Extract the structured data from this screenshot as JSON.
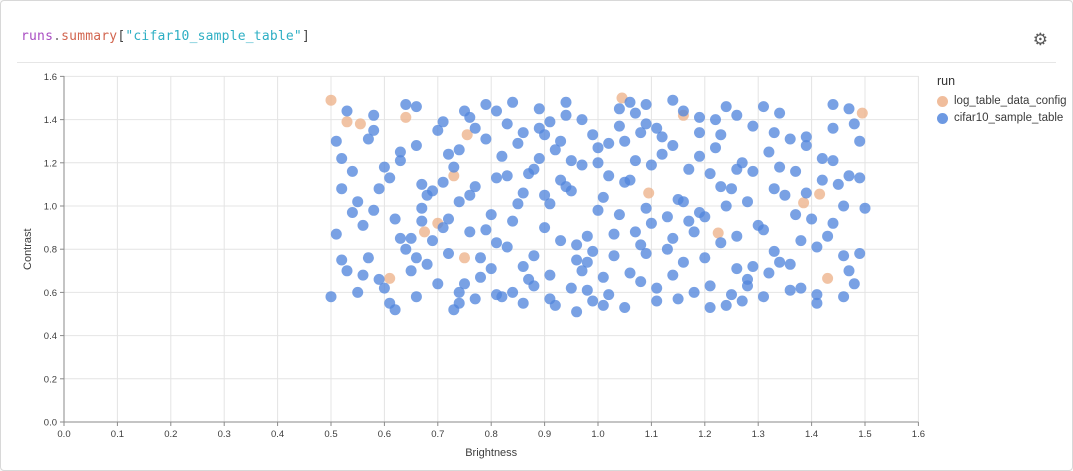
{
  "panel": {
    "title": {
      "segments": [
        {
          "text": "runs",
          "color": "#a94dc2"
        },
        {
          "text": ".",
          "color": "#777777"
        },
        {
          "text": "summary",
          "color": "#d2654f"
        },
        {
          "text": "[",
          "color": "#444444"
        },
        {
          "text": "\"cifar10_sample_table\"",
          "color": "#2eafc4"
        },
        {
          "text": "]",
          "color": "#444444"
        }
      ]
    },
    "gear_icon": "settings"
  },
  "chart_data": {
    "type": "scatter",
    "title": "",
    "xlabel": "Brightness",
    "ylabel": "Contrast",
    "xlim": [
      0,
      1.6
    ],
    "ylim": [
      0,
      1.6
    ],
    "x_tick_labels": [
      "0.0",
      "0.1",
      "0.2",
      "0.3",
      "0.4",
      "0.5",
      "0.6",
      "0.7",
      "0.8",
      "0.9",
      "1.0",
      "1.1",
      "1.2",
      "1.3",
      "1.4",
      "1.5",
      "1.6"
    ],
    "y_tick_labels": [
      "0.0",
      "0.2",
      "0.4",
      "0.6",
      "0.8",
      "1.0",
      "1.2",
      "1.4",
      "1.6"
    ],
    "grid": true,
    "marker_radius": 5.5,
    "marker_opacity": 0.78,
    "legend": {
      "title": "run",
      "position": "right",
      "entries": [
        {
          "label": "log_table_data_config",
          "color": "#edb28b"
        },
        {
          "label": "cifar10_sample_table",
          "color": "#5387dd"
        }
      ]
    },
    "series": [
      {
        "name": "log_table_data_config",
        "color": "#edb28b",
        "points": [
          [
            0.5,
            1.49
          ],
          [
            0.53,
            1.39
          ],
          [
            0.555,
            1.38
          ],
          [
            0.64,
            1.41
          ],
          [
            0.755,
            1.33
          ],
          [
            0.73,
            1.14
          ],
          [
            0.7,
            0.92
          ],
          [
            0.675,
            0.88
          ],
          [
            0.75,
            0.76
          ],
          [
            0.61,
            0.665
          ],
          [
            1.045,
            1.5
          ],
          [
            1.16,
            1.42
          ],
          [
            1.495,
            1.43
          ],
          [
            1.095,
            1.06
          ],
          [
            1.225,
            0.875
          ],
          [
            1.385,
            1.015
          ],
          [
            1.415,
            1.055
          ],
          [
            1.43,
            0.665
          ]
        ]
      },
      {
        "name": "cifar10_sample_table",
        "color": "#5387dd",
        "points": [
          [
            0.5,
            0.58
          ],
          [
            0.52,
            1.22
          ],
          [
            0.54,
            0.97
          ],
          [
            0.55,
            1.02
          ],
          [
            0.57,
            0.76
          ],
          [
            0.58,
            1.35
          ],
          [
            0.6,
            0.62
          ],
          [
            0.61,
            1.13
          ],
          [
            0.63,
            0.85
          ],
          [
            0.64,
            1.47
          ],
          [
            0.65,
            0.7
          ],
          [
            0.66,
            1.28
          ],
          [
            0.67,
            0.93
          ],
          [
            0.68,
            1.05
          ],
          [
            0.7,
            0.64
          ],
          [
            0.71,
            1.39
          ],
          [
            0.72,
            0.78
          ],
          [
            0.73,
            1.18
          ],
          [
            0.74,
            0.55
          ],
          [
            0.75,
            1.44
          ],
          [
            0.76,
            0.88
          ],
          [
            0.77,
            1.09
          ],
          [
            0.78,
            0.67
          ],
          [
            0.79,
            1.31
          ],
          [
            0.8,
            0.96
          ],
          [
            0.81,
            0.59
          ],
          [
            0.82,
            1.23
          ],
          [
            0.83,
            0.81
          ],
          [
            0.84,
            1.48
          ],
          [
            0.85,
            1.01
          ],
          [
            0.86,
            0.72
          ],
          [
            0.87,
            1.15
          ],
          [
            0.88,
            0.63
          ],
          [
            0.89,
            1.36
          ],
          [
            0.9,
            0.9
          ],
          [
            0.91,
            0.57
          ],
          [
            0.92,
            1.26
          ],
          [
            0.93,
            0.84
          ],
          [
            0.94,
            1.42
          ],
          [
            0.95,
            1.07
          ],
          [
            0.96,
            0.75
          ],
          [
            0.97,
            1.19
          ],
          [
            0.98,
            0.61
          ],
          [
            0.99,
            1.33
          ],
          [
            1.0,
            0.98
          ],
          [
            1.01,
            0.54
          ],
          [
            1.02,
            1.29
          ],
          [
            1.03,
            0.87
          ],
          [
            1.04,
            1.45
          ],
          [
            1.05,
            1.11
          ],
          [
            1.06,
            0.69
          ],
          [
            1.07,
            1.21
          ],
          [
            1.08,
            0.65
          ],
          [
            1.09,
            1.38
          ],
          [
            1.1,
            0.92
          ],
          [
            1.11,
            0.56
          ],
          [
            1.12,
            1.24
          ],
          [
            1.13,
            0.8
          ],
          [
            1.14,
            1.49
          ],
          [
            1.15,
            1.03
          ],
          [
            1.16,
            0.74
          ],
          [
            1.17,
            1.17
          ],
          [
            1.18,
            0.6
          ],
          [
            1.19,
            1.34
          ],
          [
            1.2,
            0.95
          ],
          [
            1.21,
            0.53
          ],
          [
            1.22,
            1.27
          ],
          [
            1.23,
            0.83
          ],
          [
            1.24,
            1.46
          ],
          [
            1.25,
            1.08
          ],
          [
            1.26,
            0.71
          ],
          [
            1.27,
            1.2
          ],
          [
            1.28,
            0.66
          ],
          [
            1.29,
            1.37
          ],
          [
            1.3,
            0.91
          ],
          [
            1.31,
            0.58
          ],
          [
            1.32,
            1.25
          ],
          [
            1.33,
            0.79
          ],
          [
            1.34,
            1.43
          ],
          [
            1.35,
            1.05
          ],
          [
            1.36,
            0.73
          ],
          [
            1.37,
            1.16
          ],
          [
            1.38,
            0.62
          ],
          [
            1.39,
            1.32
          ],
          [
            1.4,
            0.94
          ],
          [
            1.41,
            0.55
          ],
          [
            1.42,
            1.22
          ],
          [
            1.43,
            0.86
          ],
          [
            1.44,
            1.47
          ],
          [
            1.45,
            1.1
          ],
          [
            1.46,
            0.77
          ],
          [
            1.47,
            1.14
          ],
          [
            1.48,
            0.64
          ],
          [
            1.49,
            1.3
          ],
          [
            1.5,
            0.99
          ],
          [
            0.51,
            0.87
          ],
          [
            0.53,
            1.44
          ],
          [
            0.56,
            0.68
          ],
          [
            0.59,
            1.08
          ],
          [
            0.62,
            0.52
          ],
          [
            0.52,
            0.75
          ],
          [
            0.58,
            0.98
          ],
          [
            0.66,
            1.46
          ],
          [
            0.74,
            1.02
          ],
          [
            0.82,
            0.58
          ],
          [
            0.9,
            1.33
          ],
          [
            0.98,
            0.86
          ],
          [
            1.06,
            1.12
          ],
          [
            1.14,
            0.68
          ],
          [
            1.22,
            1.4
          ],
          [
            0.55,
            0.6
          ],
          [
            0.63,
            1.25
          ],
          [
            0.71,
            0.9
          ],
          [
            0.79,
            1.47
          ],
          [
            0.87,
            0.66
          ],
          [
            0.95,
            1.21
          ],
          [
            1.03,
            0.77
          ],
          [
            1.11,
            1.36
          ],
          [
            1.19,
            0.97
          ],
          [
            1.27,
            0.56
          ],
          [
            0.6,
            1.18
          ],
          [
            0.68,
            0.73
          ],
          [
            0.76,
            1.41
          ],
          [
            0.84,
            0.93
          ],
          [
            0.92,
            0.54
          ],
          [
            1.0,
            1.27
          ],
          [
            1.08,
            0.82
          ],
          [
            1.16,
            1.44
          ],
          [
            1.24,
            1.0
          ],
          [
            1.32,
            0.69
          ],
          [
            0.57,
            1.31
          ],
          [
            0.65,
            0.85
          ],
          [
            0.73,
            0.52
          ],
          [
            0.81,
            1.13
          ],
          [
            0.89,
            1.45
          ],
          [
            0.97,
            0.7
          ],
          [
            1.05,
            1.3
          ],
          [
            1.13,
            0.95
          ],
          [
            1.21,
            0.63
          ],
          [
            1.29,
            1.16
          ],
          [
            0.62,
            0.94
          ],
          [
            0.7,
            1.35
          ],
          [
            0.78,
            0.76
          ],
          [
            0.86,
            1.06
          ],
          [
            0.94,
            1.48
          ],
          [
            1.02,
            0.59
          ],
          [
            1.1,
            1.19
          ],
          [
            1.18,
            0.88
          ],
          [
            1.26,
            1.42
          ],
          [
            1.34,
            0.74
          ],
          [
            0.67,
            1.1
          ],
          [
            0.75,
            0.64
          ],
          [
            0.83,
            1.38
          ],
          [
            0.91,
            1.01
          ],
          [
            0.99,
            0.79
          ],
          [
            1.07,
            1.43
          ],
          [
            1.15,
            0.57
          ],
          [
            1.23,
            1.09
          ],
          [
            1.31,
            0.89
          ],
          [
            1.39,
            1.28
          ],
          [
            0.72,
            1.24
          ],
          [
            0.8,
            0.71
          ],
          [
            0.88,
            1.17
          ],
          [
            0.96,
            0.51
          ],
          [
            1.04,
            0.96
          ],
          [
            1.12,
            1.32
          ],
          [
            1.2,
            0.76
          ],
          [
            1.28,
            1.02
          ],
          [
            1.36,
            0.61
          ],
          [
            1.44,
            1.21
          ],
          [
            0.77,
            0.57
          ],
          [
            0.85,
            1.29
          ],
          [
            0.93,
            1.12
          ],
          [
            1.01,
            0.67
          ],
          [
            1.09,
            1.47
          ],
          [
            1.17,
            0.93
          ],
          [
            1.25,
            0.59
          ],
          [
            1.33,
            1.34
          ],
          [
            1.41,
            0.81
          ],
          [
            1.49,
            1.13
          ],
          [
            0.54,
            1.16
          ],
          [
            0.64,
            0.8
          ],
          [
            0.74,
            1.26
          ],
          [
            0.84,
            0.6
          ],
          [
            0.94,
            1.09
          ],
          [
            1.04,
            1.37
          ],
          [
            1.14,
            0.85
          ],
          [
            1.24,
            0.54
          ],
          [
            1.34,
            1.18
          ],
          [
            1.44,
            0.92
          ],
          [
            0.59,
            0.66
          ],
          [
            0.69,
            1.07
          ],
          [
            0.79,
            0.89
          ],
          [
            0.89,
            1.22
          ],
          [
            0.99,
            0.56
          ],
          [
            1.09,
            0.99
          ],
          [
            1.19,
            1.41
          ],
          [
            1.29,
            0.72
          ],
          [
            1.39,
            1.06
          ],
          [
            1.49,
            0.78
          ],
          [
            0.51,
            1.3
          ],
          [
            0.61,
            0.55
          ],
          [
            0.71,
            1.11
          ],
          [
            0.81,
            0.83
          ],
          [
            0.91,
            1.39
          ],
          [
            1.01,
            1.04
          ],
          [
            1.11,
            0.62
          ],
          [
            1.21,
            1.15
          ],
          [
            1.31,
            1.46
          ],
          [
            1.41,
            0.59
          ],
          [
            0.56,
            0.91
          ],
          [
            0.66,
            0.58
          ],
          [
            0.76,
            1.05
          ],
          [
            0.86,
            1.34
          ],
          [
            0.96,
            0.82
          ],
          [
            1.06,
            1.48
          ],
          [
            1.16,
            1.02
          ],
          [
            1.26,
            0.86
          ],
          [
            1.36,
            1.31
          ],
          [
            1.46,
            1.0
          ],
          [
            0.53,
            0.7
          ],
          [
            0.67,
            0.99
          ],
          [
            0.81,
            1.44
          ],
          [
            0.95,
            0.62
          ],
          [
            1.09,
            0.78
          ],
          [
            1.23,
            1.33
          ],
          [
            1.37,
            0.96
          ],
          [
            1.48,
            1.38
          ],
          [
            0.88,
            0.77
          ],
          [
            1.02,
            1.14
          ],
          [
            0.58,
            1.42
          ],
          [
            0.72,
            0.94
          ],
          [
            0.86,
            0.55
          ],
          [
            1.0,
            1.2
          ],
          [
            1.14,
            1.28
          ],
          [
            1.28,
            0.63
          ],
          [
            1.42,
            1.12
          ],
          [
            1.47,
            0.7
          ],
          [
            0.93,
            1.3
          ],
          [
            1.07,
            0.88
          ],
          [
            0.63,
            1.21
          ],
          [
            0.77,
            1.36
          ],
          [
            0.91,
            0.68
          ],
          [
            1.05,
            0.53
          ],
          [
            1.19,
            1.23
          ],
          [
            1.33,
            1.08
          ],
          [
            1.47,
            1.45
          ],
          [
            0.69,
            0.84
          ],
          [
            0.83,
            1.14
          ],
          [
            0.97,
            1.4
          ],
          [
            0.74,
            0.6
          ],
          [
            0.9,
            1.05
          ],
          [
            1.08,
            1.34
          ],
          [
            1.26,
            1.17
          ],
          [
            1.38,
            0.84
          ],
          [
            1.46,
            0.58
          ],
          [
            0.52,
            1.08
          ],
          [
            0.98,
            0.74
          ],
          [
            1.44,
            1.36
          ],
          [
            0.66,
            0.76
          ]
        ]
      }
    ]
  }
}
